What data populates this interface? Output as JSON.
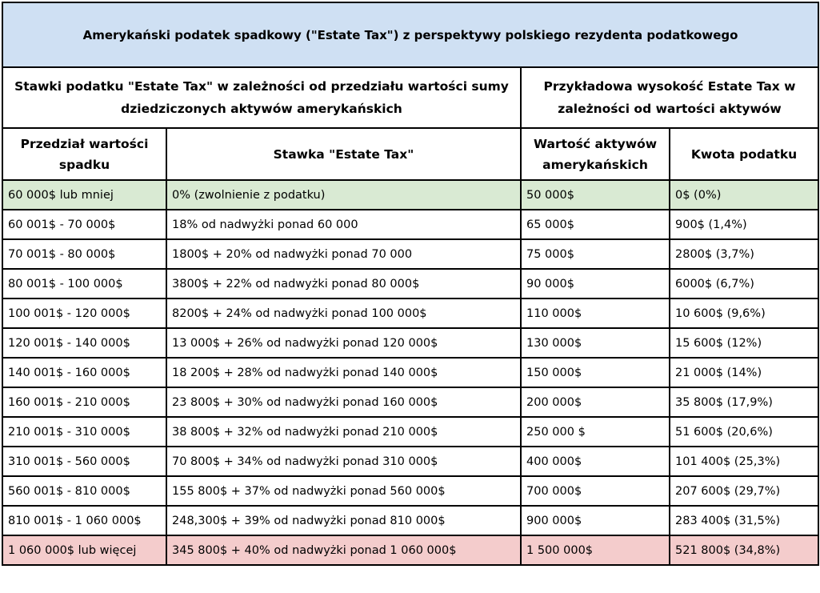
{
  "title": "Amerykański podatek spadkowy (\"Estate Tax\") z perspektywy polskiego rezydenta podatkowego",
  "groups": {
    "rates": "Stawki podatku \"Estate Tax\" w zależności od przedziału wartości sumy dziedziczonych aktywów amerykańskich",
    "examples": "Przykładowa wysokość Estate Tax w zależności od wartości aktywów"
  },
  "columns": {
    "bracket": "Przedział wartości spadku",
    "rate": "Stawka \"Estate Tax\"",
    "asset_value": "Wartość aktywów amerykańskich",
    "tax_amount": "Kwota podatku"
  },
  "rows": [
    {
      "bracket": "60 000$ lub mniej",
      "rate": "0% (zwolnienie z podatku)",
      "asset_value": "50 000$",
      "tax_amount": "0$ (0%)"
    },
    {
      "bracket": "60 001$ - 70 000$",
      "rate": "18% od nadwyżki ponad 60 000",
      "asset_value": "65 000$",
      "tax_amount": "900$ (1,4%)"
    },
    {
      "bracket": "70 001$ - 80 000$",
      "rate": "1800$ + 20% od nadwyżki ponad 70 000",
      "asset_value": "75 000$",
      "tax_amount": "2800$ (3,7%)"
    },
    {
      "bracket": "80 001$ - 100 000$",
      "rate": "3800$ + 22% od nadwyżki ponad 80 000$",
      "asset_value": "90 000$",
      "tax_amount": "6000$ (6,7%)"
    },
    {
      "bracket": "100 001$ - 120 000$",
      "rate": "8200$ + 24% od nadwyżki ponad 100 000$",
      "asset_value": "110 000$",
      "tax_amount": "10 600$ (9,6%)"
    },
    {
      "bracket": "120 001$ - 140 000$",
      "rate": "13 000$ + 26% od nadwyżki ponad 120 000$",
      "asset_value": "130 000$",
      "tax_amount": "15 600$ (12%)"
    },
    {
      "bracket": "140 001$ - 160 000$",
      "rate": "18 200$ + 28% od nadwyżki ponad 140 000$",
      "asset_value": "150 000$",
      "tax_amount": "21 000$ (14%)"
    },
    {
      "bracket": "160 001$ - 210 000$",
      "rate": "23 800$ + 30% od nadwyżki ponad 160 000$",
      "asset_value": "200 000$",
      "tax_amount": "35 800$ (17,9%)"
    },
    {
      "bracket": "210 001$ - 310 000$",
      "rate": "38 800$ + 32% od nadwyżki ponad 210 000$",
      "asset_value": "250 000 $",
      "tax_amount": "51 600$ (20,6%)"
    },
    {
      "bracket": "310 001$ - 560 000$",
      "rate": "70 800$ + 34% od nadwyżki ponad 310 000$",
      "asset_value": "400 000$",
      "tax_amount": "101 400$ (25,3%)"
    },
    {
      "bracket": "560 001$ - 810 000$",
      "rate": "155 800$ + 37% od nadwyżki ponad 560 000$",
      "asset_value": "700 000$",
      "tax_amount": "207 600$ (29,7%)"
    },
    {
      "bracket": "810 001$ - 1 060 000$",
      "rate": "248,300$ + 39% od nadwyżki ponad 810 000$",
      "asset_value": "900 000$",
      "tax_amount": "283 400$ (31,5%)"
    },
    {
      "bracket": "1 060 000$ lub więcej",
      "rate": "345 800$ + 40% od nadwyżki ponad 1 060 000$",
      "asset_value": "1 500 000$",
      "tax_amount": "521 800$ (34,8%)"
    }
  ],
  "colors": {
    "title_bg": "#cfe0f3",
    "first_row_bg": "#d9ead3",
    "last_row_bg": "#f4cccc",
    "border": "#000000"
  }
}
